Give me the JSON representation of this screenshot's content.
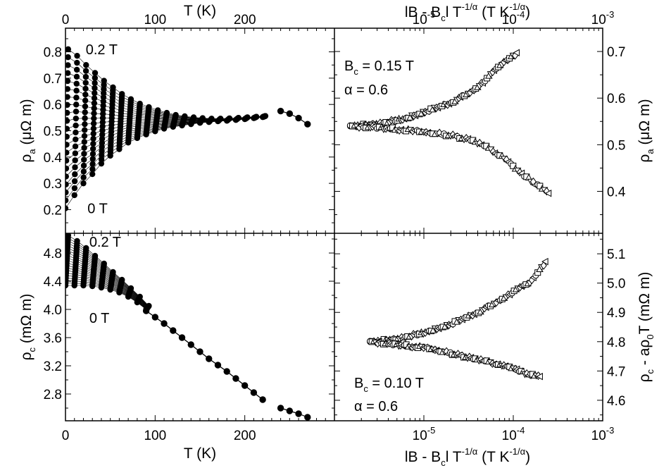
{
  "figure": {
    "top_axis": {
      "left": {
        "label_main": "T (K)"
      },
      "right": {
        "label_main": "lB - B",
        "label_sub": "c",
        "label_rest": "l T",
        "label_exp": "-1/α",
        "label_unit": " (T K",
        "label_unit_exp": "-1/α",
        "label_close": ")"
      }
    },
    "bottom_axis": {
      "left": {
        "label_main": "T (K)"
      },
      "right": {
        "label_main": "lB - B",
        "label_sub": "c",
        "label_rest": "l T",
        "label_exp": "-1/α",
        "label_unit": " (T K",
        "label_unit_exp": "-1/α",
        "label_close": ")"
      }
    }
  },
  "chart_data": [
    {
      "panel": "top-left",
      "type": "line",
      "xlabel": "T (K)",
      "ylabel": "ρa (μΩ m)",
      "ylabel_main": "ρ",
      "ylabel_sub": "a",
      "ylabel_unit": " (μΩ m)",
      "xlim": [
        0,
        300
      ],
      "ylim": [
        0.11,
        0.89
      ],
      "xticks": [
        0,
        100,
        200
      ],
      "yticks": [
        0.2,
        0.3,
        0.4,
        0.5,
        0.6,
        0.7,
        0.8
      ],
      "annotations": [
        {
          "text": "0.2 T",
          "x": 10,
          "y": 0.81
        },
        {
          "text": "0 T",
          "x": 12,
          "y": 0.205
        }
      ],
      "marker": "filled-circle",
      "field_range": [
        0,
        0.2
      ],
      "n_curves": 21,
      "t_points": [
        0,
        10,
        20,
        30,
        40,
        50,
        60,
        70,
        80,
        90,
        100,
        110,
        120,
        130,
        140,
        150,
        160,
        170,
        180,
        190,
        200,
        210,
        220
      ],
      "curve_at_0T": [
        0.205,
        0.255,
        0.3,
        0.335,
        0.375,
        0.405,
        0.43,
        0.455,
        0.472,
        0.486,
        0.498,
        0.508,
        0.515,
        0.52,
        0.525,
        0.53,
        0.533,
        0.536,
        0.538,
        0.541,
        0.544,
        0.548,
        0.552
      ],
      "curve_at_0_2T": [
        0.81,
        0.785,
        0.75,
        0.72,
        0.69,
        0.665,
        0.64,
        0.62,
        0.603,
        0.59,
        0.578,
        0.568,
        0.56,
        0.555,
        0.551,
        0.548,
        0.546,
        0.546,
        0.547,
        0.549,
        0.551,
        0.553,
        0.556
      ],
      "high_t_segment": {
        "x": [
          240,
          250,
          260,
          270
        ],
        "y": [
          0.575,
          0.565,
          0.548,
          0.525
        ]
      }
    },
    {
      "panel": "top-right",
      "type": "scatter",
      "xscale": "log",
      "xlabel": "lB - Bcl T^(-1/α) (T K^(-1/α))",
      "ylabel": "ρa (μΩ m)",
      "ylabel_main": "ρ",
      "ylabel_sub": "a",
      "ylabel_unit": " (μΩ m)",
      "xlim": [
        1e-06,
        0.001
      ],
      "ylim": [
        0.31,
        0.75
      ],
      "xticks": [
        {
          "base": "10",
          "exp": "-5",
          "value": 1e-05
        },
        {
          "base": "10",
          "exp": "-4",
          "value": 0.0001
        },
        {
          "base": "10",
          "exp": "-3",
          "value": 0.001
        }
      ],
      "yticks": [
        0.4,
        0.5,
        0.6,
        0.7
      ],
      "annotations": [
        {
          "text_main": "B",
          "text_sub": "c",
          "text_rest": " = 0.15 T"
        },
        {
          "text": "α = 0.6"
        }
      ],
      "markers": [
        "circle",
        "square",
        "triangle-up",
        "triangle-down",
        "diamond",
        "triangle-left"
      ],
      "upper_branch": {
        "x": [
          1.5e-06,
          3e-06,
          6e-06,
          1e-05,
          2e-05,
          3.5e-05,
          5e-05,
          8e-05,
          0.00011
        ],
        "y": [
          0.54,
          0.545,
          0.555,
          0.57,
          0.59,
          0.615,
          0.64,
          0.68,
          0.695
        ]
      },
      "lower_branch": {
        "x": [
          1.5e-06,
          3e-06,
          6e-06,
          1e-05,
          2e-05,
          3.5e-05,
          5e-05,
          8e-05,
          0.00012,
          0.00018,
          0.00025
        ],
        "y": [
          0.54,
          0.537,
          0.532,
          0.527,
          0.52,
          0.51,
          0.495,
          0.47,
          0.44,
          0.415,
          0.395
        ]
      }
    },
    {
      "panel": "bottom-left",
      "type": "line",
      "xlabel": "T (K)",
      "ylabel": "ρc (mΩ m)",
      "ylabel_main": "ρ",
      "ylabel_sub": "c",
      "ylabel_unit": " (mΩ m)",
      "xlim": [
        0,
        300
      ],
      "ylim": [
        2.42,
        5.08
      ],
      "xticks": [
        0,
        100,
        200
      ],
      "yticks": [
        2.8,
        3.2,
        3.6,
        4.0,
        4.4,
        4.8
      ],
      "annotations": [
        {
          "text": "0.2 T",
          "x": 14,
          "y": 4.96
        },
        {
          "text": "0 T",
          "x": 14,
          "y": 3.88
        }
      ],
      "marker": "filled-circle",
      "field_range": [
        0,
        0.2
      ],
      "n_curves": 21,
      "t_points": [
        0,
        10,
        20,
        30,
        40,
        50,
        60,
        70,
        80,
        90
      ],
      "curve_at_0T": [
        4.34,
        4.34,
        4.34,
        4.33,
        4.31,
        4.28,
        4.24,
        4.18,
        4.1,
        4.0
      ],
      "curve_at_0_2T": [
        5.05,
        4.97,
        4.87,
        4.76,
        4.65,
        4.53,
        4.42,
        4.3,
        4.18,
        4.05
      ],
      "tail": {
        "x": [
          90,
          100,
          110,
          120,
          130,
          140,
          150,
          160,
          170,
          180,
          190,
          200,
          210,
          220
        ],
        "y": [
          3.98,
          3.89,
          3.8,
          3.7,
          3.6,
          3.5,
          3.4,
          3.3,
          3.21,
          3.12,
          3.02,
          2.92,
          2.82,
          2.72
        ]
      },
      "high_t_segment": {
        "x": [
          240,
          250,
          260,
          270
        ],
        "y": [
          2.6,
          2.56,
          2.52,
          2.47
        ]
      }
    },
    {
      "panel": "bottom-right",
      "type": "scatter",
      "xscale": "log",
      "xlabel": "lB - Bcl T^(-1/α) (T K^(-1/α))",
      "ylabel": "ρc - aρ0T (mΩ m)",
      "ylabel_main": "ρ",
      "ylabel_sub": "c",
      "ylabel_mid": " - aρ",
      "ylabel_sub2": "0",
      "ylabel_unit": "T (mΩ m)",
      "xlim": [
        1e-06,
        0.001
      ],
      "ylim": [
        4.53,
        5.17
      ],
      "xticks": [
        {
          "base": "10",
          "exp": "-5",
          "value": 1e-05
        },
        {
          "base": "10",
          "exp": "-4",
          "value": 0.0001
        },
        {
          "base": "10",
          "exp": "-3",
          "value": 0.001
        }
      ],
      "yticks": [
        4.6,
        4.7,
        4.8,
        4.9,
        5.0,
        5.1
      ],
      "annotations": [
        {
          "text_main": "B",
          "text_sub": "c",
          "text_rest": " = 0.10 T"
        },
        {
          "text": "α = 0.6"
        }
      ],
      "markers": [
        "circle",
        "square",
        "triangle-up",
        "triangle-down",
        "diamond",
        "triangle-left"
      ],
      "upper_branch": {
        "x": [
          2.5e-06,
          5e-06,
          1e-05,
          2e-05,
          4e-05,
          7e-05,
          0.0001,
          0.00015,
          0.00023
        ],
        "y": [
          4.8,
          4.81,
          4.83,
          4.86,
          4.9,
          4.94,
          4.97,
          5.0,
          5.07
        ]
      },
      "lower_branch": {
        "x": [
          2.5e-06,
          5e-06,
          1e-05,
          2e-05,
          4e-05,
          7e-05,
          0.0001,
          0.00014,
          0.0002
        ],
        "y": [
          4.8,
          4.79,
          4.78,
          4.76,
          4.74,
          4.72,
          4.71,
          4.69,
          4.68
        ]
      }
    }
  ]
}
